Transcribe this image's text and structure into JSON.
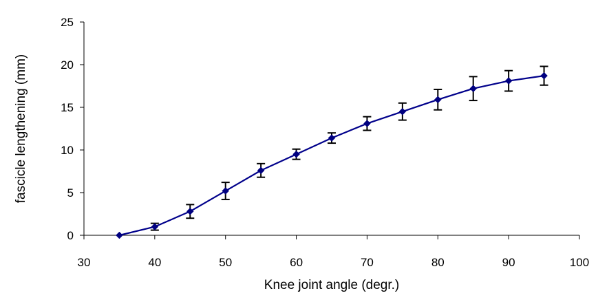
{
  "chart_data": {
    "type": "line",
    "title": "",
    "xlabel": "Knee joint angle (degr.)",
    "ylabel": "fascicle lengthening (mm)",
    "xlim": [
      30,
      100
    ],
    "ylim": [
      0,
      25
    ],
    "xticks": [
      30,
      40,
      50,
      60,
      70,
      80,
      90,
      100
    ],
    "yticks": [
      0,
      5,
      10,
      15,
      20,
      25
    ],
    "grid": false,
    "legend": "none",
    "series": [
      {
        "x": [
          35,
          40,
          45,
          50,
          55,
          60,
          65,
          70,
          75,
          80,
          85,
          90,
          95
        ],
        "y": [
          0.0,
          1.0,
          2.8,
          5.2,
          7.6,
          9.5,
          11.4,
          13.1,
          14.5,
          15.9,
          17.2,
          18.1,
          18.7
        ],
        "error": [
          0.0,
          0.4,
          0.8,
          1.0,
          0.8,
          0.6,
          0.6,
          0.8,
          1.0,
          1.2,
          1.4,
          1.2,
          1.1
        ],
        "line_color": "#00008B",
        "marker_color": "#000080"
      }
    ]
  }
}
